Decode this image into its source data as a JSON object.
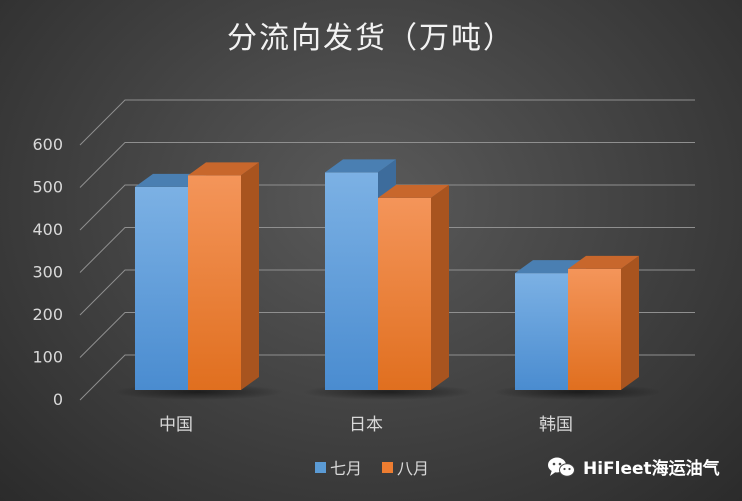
{
  "chart_data": {
    "type": "bar",
    "title": "分流向发货（万吨）",
    "categories": [
      "中国",
      "日本",
      "韩国"
    ],
    "series": [
      {
        "name": "七月",
        "values": [
          478,
          512,
          275
        ],
        "color": "#5b9bd5"
      },
      {
        "name": "八月",
        "values": [
          505,
          452,
          285
        ],
        "color": "#ed7d31"
      }
    ],
    "yticks": [
      "0",
      "100",
      "200",
      "300",
      "400",
      "500",
      "600"
    ],
    "ylim": [
      0,
      600
    ],
    "grid": true,
    "legend_position": "bottom",
    "three_d": true
  },
  "watermark": {
    "text": "HiFleet海运油气",
    "icon": "wechat-icon"
  }
}
